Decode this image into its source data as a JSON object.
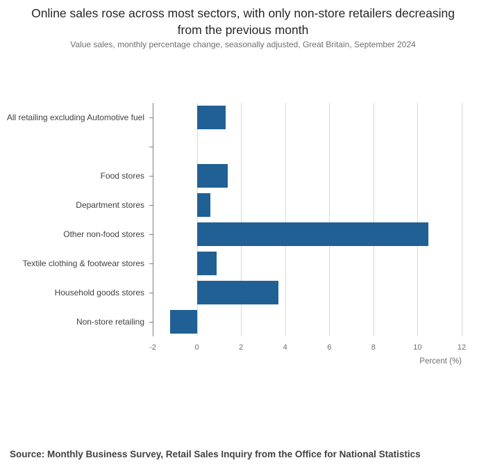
{
  "chart_data": {
    "type": "bar",
    "orientation": "horizontal",
    "title": "Online sales rose across most sectors, with only non-store retailers decreasing from the previous month",
    "subtitle": "Value sales, monthly percentage change, seasonally adjusted, Great Britain, September 2024",
    "categories": [
      "All retailing excluding Automotive fuel",
      "",
      "Food stores",
      "Department stores",
      "Other non-food stores",
      "Textile clothing & footwear stores",
      "Household goods stores",
      "Non-store retailing"
    ],
    "values": [
      1.3,
      null,
      1.4,
      0.6,
      10.5,
      0.9,
      3.7,
      -1.2
    ],
    "xlabel": "Percent (%)",
    "ylabel": "",
    "xlim": [
      -2,
      12
    ],
    "xticks": [
      -2,
      0,
      2,
      4,
      6,
      8,
      10,
      12
    ],
    "grid": true,
    "bar_color": "#206095",
    "source": "Source: Monthly Business Survey, Retail Sales Inquiry from the Office for National Statistics"
  }
}
